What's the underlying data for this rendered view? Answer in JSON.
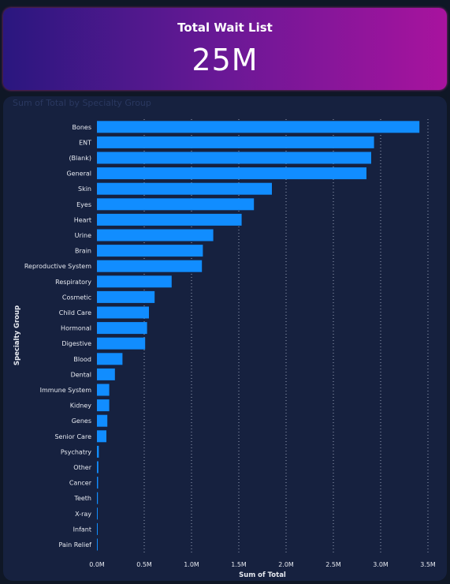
{
  "kpi": {
    "title": "Total Wait List",
    "value": "25M"
  },
  "chart_data": {
    "type": "bar",
    "orientation": "horizontal",
    "title": "Sum of Total by Specialty Group",
    "xlabel": "Sum of Total",
    "ylabel": "Specialty Group",
    "xlim": [
      0,
      3500000
    ],
    "xticks": [
      0,
      500000,
      1000000,
      1500000,
      2000000,
      2500000,
      3000000,
      3500000
    ],
    "xtick_labels": [
      "0.0M",
      "0.5M",
      "1.0M",
      "1.5M",
      "2.0M",
      "2.5M",
      "3.0M",
      "3.5M"
    ],
    "grid": "vertical-dotted",
    "bar_color": "#118dff",
    "categories": [
      "Bones",
      "ENT",
      "(Blank)",
      "General",
      "Skin",
      "Eyes",
      "Heart",
      "Urine",
      "Brain",
      "Reproductive System",
      "Respiratory",
      "Cosmetic",
      "Child Care",
      "Hormonal",
      "Digestive",
      "Blood",
      "Dental",
      "Immune System",
      "Kidney",
      "Genes",
      "Senior Care",
      "Psychatry",
      "Other",
      "Cancer",
      "Teeth",
      "X-ray",
      "Infant",
      "Pain Relief"
    ],
    "values": [
      3410000,
      2930000,
      2900000,
      2850000,
      1850000,
      1660000,
      1530000,
      1230000,
      1120000,
      1110000,
      790000,
      610000,
      550000,
      530000,
      510000,
      270000,
      190000,
      130000,
      130000,
      110000,
      100000,
      20000,
      15000,
      12000,
      10000,
      3000,
      2000,
      1000
    ]
  }
}
